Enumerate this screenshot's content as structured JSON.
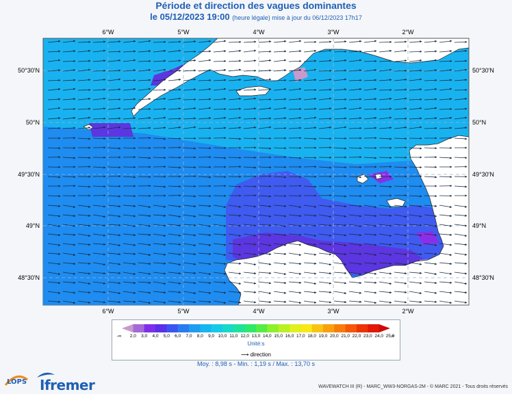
{
  "title": "Période et direction des vagues dominantes",
  "subtitle_date": "le 05/12/2023 19:00",
  "subtitle_note": "(heure légale) mise à jour du 06/12/2023 17h17",
  "map": {
    "lon_labels": [
      "6°W",
      "5°W",
      "4°W",
      "3°W",
      "2°W"
    ],
    "lat_labels": [
      "50°30'N",
      "50°N",
      "49°30'N",
      "49°N",
      "48°30'N"
    ],
    "colors": {
      "ocean_main": "#19b2f0",
      "ocean_mid": "#1e8cf0",
      "ocean_low": "#3f5bf0",
      "ocean_lowest": "#5c36e0",
      "purple": "#8a2fe8",
      "land": "#ffffff"
    }
  },
  "colorbar": {
    "ticks": [
      "2,0",
      "3,0",
      "4,0",
      "5,0",
      "6,0",
      "7,0",
      "8,0",
      "9,0",
      "10,0",
      "11,0",
      "12,0",
      "13,0",
      "14,0",
      "15,0",
      "16,0",
      "17,0",
      "18,0",
      "19,0",
      "20,0",
      "21,0",
      "22,0",
      "23,0",
      "24,0",
      "25,0"
    ],
    "low_marker": "-∞",
    "high_marker": "∞",
    "colors": [
      "#c89acc",
      "#a36ad8",
      "#7d30e8",
      "#5a30e8",
      "#3a55f0",
      "#2a7bf0",
      "#1e9df0",
      "#19b5f0",
      "#16c9e8",
      "#18d8c8",
      "#1ee29a",
      "#2ee86a",
      "#55ec44",
      "#8cf02c",
      "#baf024",
      "#e0f020",
      "#f8e818",
      "#f8c414",
      "#f8a010",
      "#f87c0c",
      "#f45808",
      "#ec3406",
      "#e01a06",
      "#d00808"
    ],
    "unit": "Unité:s",
    "direction_label": "direction"
  },
  "stats": "Moy. : 8,98 s   -   Min. : 1,19 s / Max. : 13,70 s",
  "credit": "WAVEWATCH III (R) - MARC_WW3-NORGAS-2M - © MARC 2021 - Tous droits réservés",
  "logos": {
    "lops": "LOPS",
    "ifremer": "Ifremer"
  }
}
